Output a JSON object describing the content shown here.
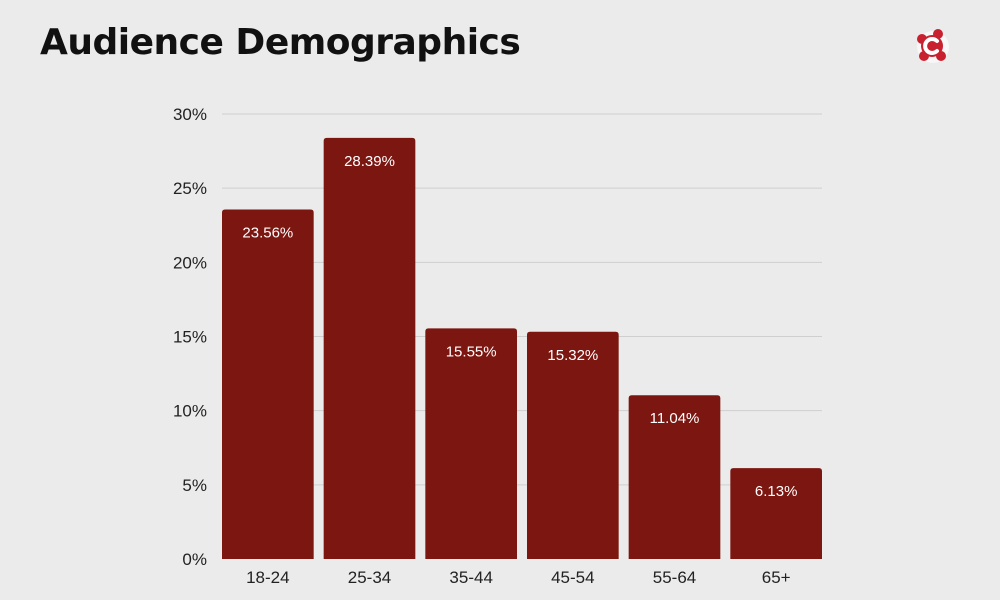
{
  "chart_data": {
    "type": "bar",
    "title": "Audience Demographics",
    "categories": [
      "18-24",
      "25-34",
      "35-44",
      "45-54",
      "55-64",
      "65+"
    ],
    "values": [
      23.56,
      28.39,
      15.55,
      15.32,
      11.04,
      6.13
    ],
    "value_labels": [
      "23.56%",
      "28.39%",
      "15.55%",
      "15.32%",
      "11.04%",
      "6.13%"
    ],
    "y_ticks": [
      0,
      5,
      10,
      15,
      20,
      25,
      30
    ],
    "y_tick_labels": [
      "0%",
      "5%",
      "10%",
      "15%",
      "20%",
      "25%",
      "30%"
    ],
    "ylim": [
      0,
      30
    ],
    "xlabel": "",
    "ylabel": "",
    "grid": true,
    "legend": "none"
  },
  "colors": {
    "background": "#ebebeb",
    "bar": "#7c1611",
    "gridline": "#cfcfcf",
    "bar_label": "#ffffff",
    "axis_text": "#222222",
    "logo": "#c8202e"
  },
  "icons": {
    "brand_logo": "brand-logo-icon"
  }
}
